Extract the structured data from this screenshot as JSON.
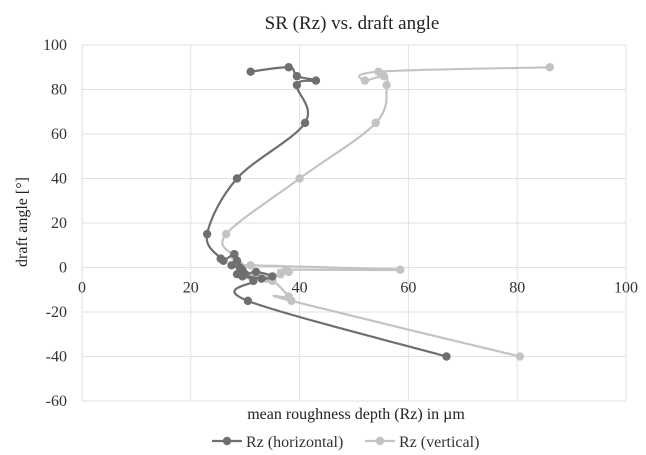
{
  "chart_data": {
    "type": "scatter",
    "title": "SR (Rz) vs. draft angle",
    "xlabel": "mean roughness depth (Rz) in µm",
    "ylabel": "draft angle [°]",
    "xlim": [
      0,
      100
    ],
    "ylim": [
      -60,
      100
    ],
    "x_ticks": [
      "0",
      "20",
      "40",
      "60",
      "80",
      "100"
    ],
    "y_ticks": [
      "100",
      "80",
      "60",
      "40",
      "20",
      "0",
      "-20",
      "-40",
      "-60"
    ],
    "grid": true,
    "legend_position": "bottom",
    "series": [
      {
        "name": "Rz (horizontal)",
        "color": "#6f6f6f",
        "points": [
          [
            31,
            88
          ],
          [
            38,
            90
          ],
          [
            39.5,
            86
          ],
          [
            43,
            84
          ],
          [
            39.5,
            82
          ],
          [
            41,
            65
          ],
          [
            28.5,
            40
          ],
          [
            23,
            15
          ],
          [
            25.5,
            4
          ],
          [
            26,
            3
          ],
          [
            28,
            6
          ],
          [
            28.5,
            3
          ],
          [
            27.5,
            1
          ],
          [
            29,
            0
          ],
          [
            29.5,
            -1
          ],
          [
            30,
            -3
          ],
          [
            32,
            -2
          ],
          [
            35,
            -4
          ],
          [
            33,
            -5
          ],
          [
            28.5,
            -3
          ],
          [
            29.5,
            -4
          ],
          [
            31.5,
            -6
          ],
          [
            30.5,
            -15
          ],
          [
            67,
            -40
          ]
        ]
      },
      {
        "name": "Rz (vertical)",
        "color": "#c3c3c3",
        "points": [
          [
            86,
            90
          ],
          [
            54.5,
            88
          ],
          [
            52,
            84
          ],
          [
            55.5,
            86
          ],
          [
            56,
            82
          ],
          [
            54,
            65
          ],
          [
            40,
            40
          ],
          [
            26.5,
            15
          ],
          [
            28,
            5
          ],
          [
            28.5,
            3
          ],
          [
            29,
            1
          ],
          [
            31,
            1
          ],
          [
            58.5,
            -1
          ],
          [
            37.5,
            -1
          ],
          [
            38,
            -2
          ],
          [
            36.5,
            -3
          ],
          [
            34,
            -5
          ],
          [
            31,
            -4
          ],
          [
            35,
            -6
          ],
          [
            38,
            -13
          ],
          [
            38.5,
            -15
          ],
          [
            80.5,
            -40
          ]
        ]
      }
    ]
  }
}
